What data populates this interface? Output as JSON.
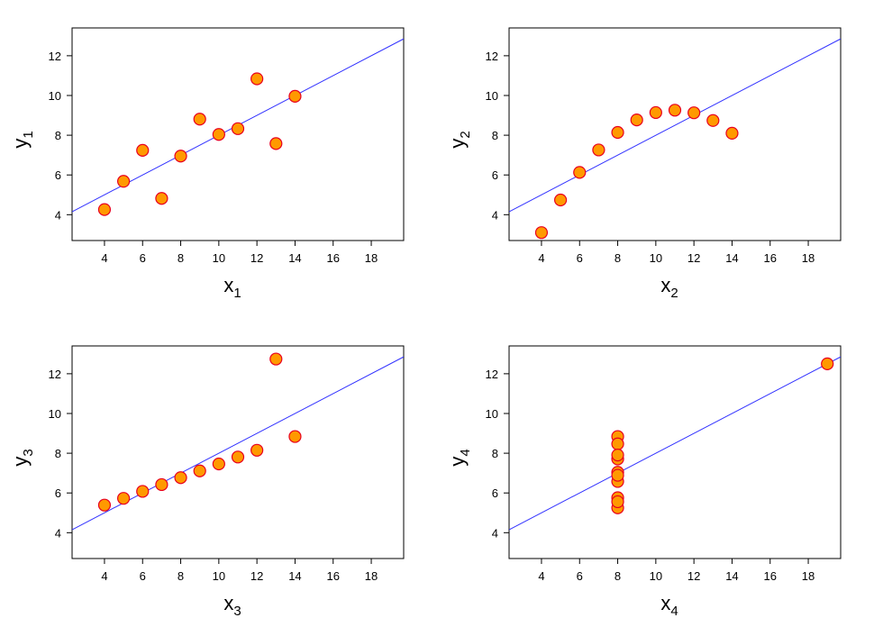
{
  "chart_data": [
    {
      "type": "scatter",
      "xlabel": "x",
      "xlabel_sub": "1",
      "ylabel": "y",
      "ylabel_sub": "1",
      "xlim": [
        2.3,
        19.7
      ],
      "ylim": [
        2.7,
        13.4
      ],
      "xticks": [
        "4",
        "6",
        "8",
        "10",
        "12",
        "14",
        "16",
        "18"
      ],
      "yticks": [
        "4",
        "6",
        "8",
        "10",
        "12"
      ],
      "x": [
        10,
        8,
        13,
        9,
        11,
        14,
        6,
        4,
        12,
        7,
        5
      ],
      "y": [
        8.04,
        6.95,
        7.58,
        8.81,
        8.33,
        9.96,
        7.24,
        4.26,
        10.84,
        4.82,
        5.68
      ],
      "fit": {
        "intercept": 3.0,
        "slope": 0.5
      },
      "marker_color": "#ff9900",
      "marker_edge": "#e8001f",
      "line_color": "#3333ff"
    },
    {
      "type": "scatter",
      "xlabel": "x",
      "xlabel_sub": "2",
      "ylabel": "y",
      "ylabel_sub": "2",
      "xlim": [
        2.3,
        19.7
      ],
      "ylim": [
        2.7,
        13.4
      ],
      "xticks": [
        "4",
        "6",
        "8",
        "10",
        "12",
        "14",
        "16",
        "18"
      ],
      "yticks": [
        "4",
        "6",
        "8",
        "10",
        "12"
      ],
      "x": [
        10,
        8,
        13,
        9,
        11,
        14,
        6,
        4,
        12,
        7,
        5
      ],
      "y": [
        9.14,
        8.14,
        8.74,
        8.77,
        9.26,
        8.1,
        6.13,
        3.1,
        9.13,
        7.26,
        4.74
      ],
      "fit": {
        "intercept": 3.0,
        "slope": 0.5
      },
      "marker_color": "#ff9900",
      "marker_edge": "#e8001f",
      "line_color": "#3333ff"
    },
    {
      "type": "scatter",
      "xlabel": "x",
      "xlabel_sub": "3",
      "ylabel": "y",
      "ylabel_sub": "3",
      "xlim": [
        2.3,
        19.7
      ],
      "ylim": [
        2.7,
        13.4
      ],
      "xticks": [
        "4",
        "6",
        "8",
        "10",
        "12",
        "14",
        "16",
        "18"
      ],
      "yticks": [
        "4",
        "6",
        "8",
        "10",
        "12"
      ],
      "x": [
        10,
        8,
        13,
        9,
        11,
        14,
        6,
        4,
        12,
        7,
        5
      ],
      "y": [
        7.46,
        6.77,
        12.74,
        7.11,
        7.81,
        8.84,
        6.08,
        5.39,
        8.15,
        6.42,
        5.73
      ],
      "fit": {
        "intercept": 3.0,
        "slope": 0.5
      },
      "marker_color": "#ff9900",
      "marker_edge": "#e8001f",
      "line_color": "#3333ff"
    },
    {
      "type": "scatter",
      "xlabel": "x",
      "xlabel_sub": "4",
      "ylabel": "y",
      "ylabel_sub": "4",
      "xlim": [
        2.3,
        19.7
      ],
      "ylim": [
        2.7,
        13.4
      ],
      "xticks": [
        "4",
        "6",
        "8",
        "10",
        "12",
        "14",
        "16",
        "18"
      ],
      "yticks": [
        "4",
        "6",
        "8",
        "10",
        "12"
      ],
      "x": [
        8,
        8,
        8,
        8,
        8,
        8,
        8,
        19,
        8,
        8,
        8
      ],
      "y": [
        6.58,
        5.76,
        7.71,
        8.84,
        8.47,
        7.04,
        5.25,
        12.5,
        5.56,
        7.91,
        6.89
      ],
      "fit": {
        "intercept": 3.0,
        "slope": 0.5
      },
      "marker_color": "#ff9900",
      "marker_edge": "#e8001f",
      "line_color": "#3333ff"
    }
  ]
}
